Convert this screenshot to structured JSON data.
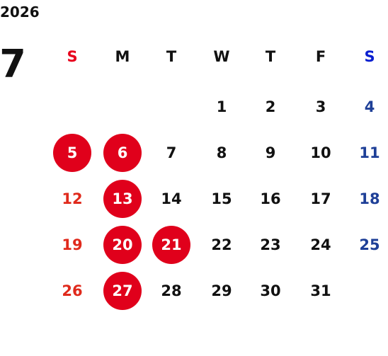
{
  "year": "2026",
  "month": "7",
  "weekdays": [
    "S",
    "M",
    "T",
    "W",
    "T",
    "F",
    "S"
  ],
  "weeks": [
    [
      null,
      null,
      null,
      {
        "day": "1"
      },
      {
        "day": "2"
      },
      {
        "day": "3"
      },
      {
        "day": "4"
      }
    ],
    [
      {
        "day": "5",
        "marked": true
      },
      {
        "day": "6",
        "marked": true
      },
      {
        "day": "7"
      },
      {
        "day": "8"
      },
      {
        "day": "9"
      },
      {
        "day": "10"
      },
      {
        "day": "11"
      }
    ],
    [
      {
        "day": "12"
      },
      {
        "day": "13",
        "marked": true
      },
      {
        "day": "14"
      },
      {
        "day": "15"
      },
      {
        "day": "16"
      },
      {
        "day": "17"
      },
      {
        "day": "18"
      }
    ],
    [
      {
        "day": "19"
      },
      {
        "day": "20",
        "marked": true
      },
      {
        "day": "21",
        "marked": true
      },
      {
        "day": "22"
      },
      {
        "day": "23"
      },
      {
        "day": "24"
      },
      {
        "day": "25"
      }
    ],
    [
      {
        "day": "26"
      },
      {
        "day": "27",
        "marked": true
      },
      {
        "day": "28"
      },
      {
        "day": "29"
      },
      {
        "day": "30"
      },
      {
        "day": "31"
      },
      null
    ]
  ]
}
